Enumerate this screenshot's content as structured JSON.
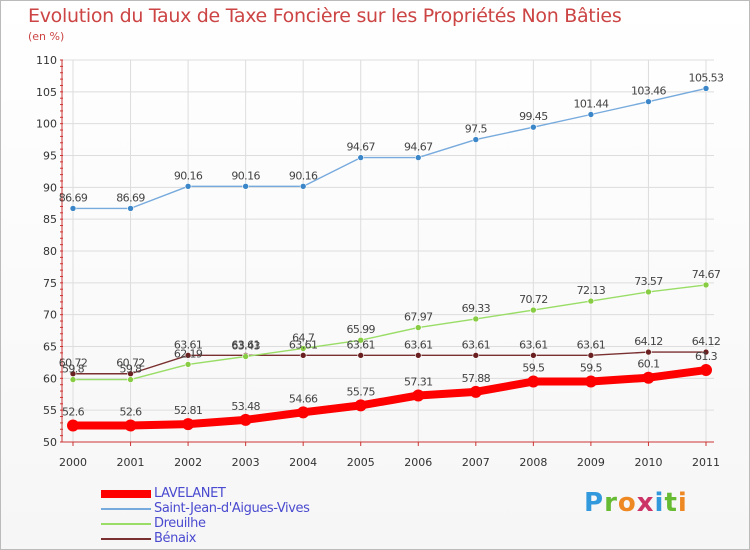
{
  "title": "Evolution du Taux de Taxe Foncière sur les Propriétés Non Bâties",
  "unit_label": "(en %)",
  "logo_text": "Proxiti",
  "chart_data": {
    "type": "line",
    "title": "Evolution du Taux de Taxe Foncière sur les Propriétés Non Bâties",
    "ylabel": "(en %)",
    "xlabel": "",
    "ylim": [
      50,
      110
    ],
    "yticks": [
      50,
      55,
      60,
      65,
      70,
      75,
      80,
      85,
      90,
      95,
      100,
      105,
      110
    ],
    "grid": true,
    "legend_position": "bottom",
    "categories": [
      "2000",
      "2001",
      "2002",
      "2003",
      "2004",
      "2005",
      "2006",
      "2007",
      "2008",
      "2009",
      "2010",
      "2011"
    ],
    "series": [
      {
        "name": "Bénaix",
        "color": "#7a3030",
        "values": [
          60.72,
          60.72,
          63.61,
          63.61,
          63.61,
          63.61,
          63.61,
          63.61,
          63.61,
          63.61,
          64.12,
          64.12
        ]
      },
      {
        "name": "Dreuilhe",
        "color": "#99dd66",
        "values": [
          59.8,
          59.8,
          62.19,
          63.43,
          64.7,
          65.99,
          67.97,
          69.33,
          70.72,
          72.13,
          73.57,
          74.67
        ]
      },
      {
        "name": "Saint-Jean-d'Aigues-Vives",
        "color": "#77aadd",
        "values": [
          86.69,
          86.69,
          90.16,
          90.16,
          90.16,
          94.67,
          94.67,
          97.5,
          99.45,
          101.44,
          103.46,
          105.53
        ]
      },
      {
        "name": "LAVELANET",
        "color": "#ff0000",
        "values": [
          52.6,
          52.6,
          52.81,
          53.48,
          54.66,
          55.75,
          57.31,
          57.88,
          59.5,
          59.5,
          60.1,
          61.3
        ]
      }
    ],
    "legend": [
      "LAVELANET",
      "Saint-Jean-d'Aigues-Vives",
      "Dreuilhe",
      "Bénaix"
    ]
  }
}
